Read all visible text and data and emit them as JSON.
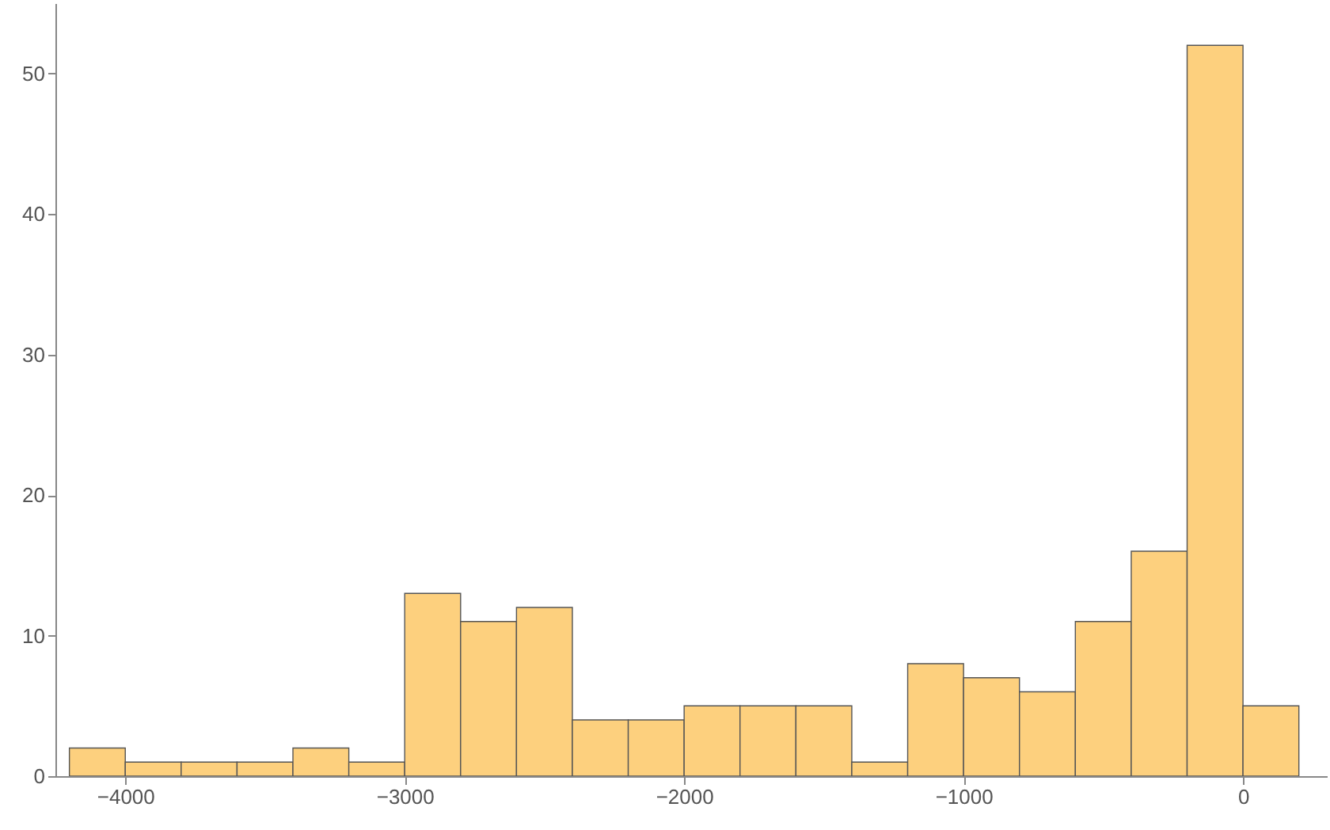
{
  "chart_data": {
    "type": "histogram",
    "bins": [
      -4200,
      -4000,
      -3800,
      -3600,
      -3400,
      -3200,
      -3000,
      -2800,
      -2600,
      -2400,
      -2200,
      -2000,
      -1800,
      -1600,
      -1400,
      -1200,
      -1000,
      -800,
      -600,
      -400,
      -200,
      0,
      200
    ],
    "values": [
      2,
      1,
      1,
      1,
      2,
      1,
      13,
      11,
      12,
      4,
      4,
      5,
      5,
      5,
      1,
      8,
      7,
      6,
      11,
      16,
      52,
      5
    ],
    "color": "#fdd07e",
    "xlim": [
      -4250,
      300
    ],
    "xticks": [
      -4000,
      -3000,
      -2000,
      -1000,
      0
    ],
    "ylim": [
      0,
      55
    ],
    "yticks": [
      0,
      10,
      20,
      30,
      40,
      50
    ],
    "grid": false
  }
}
